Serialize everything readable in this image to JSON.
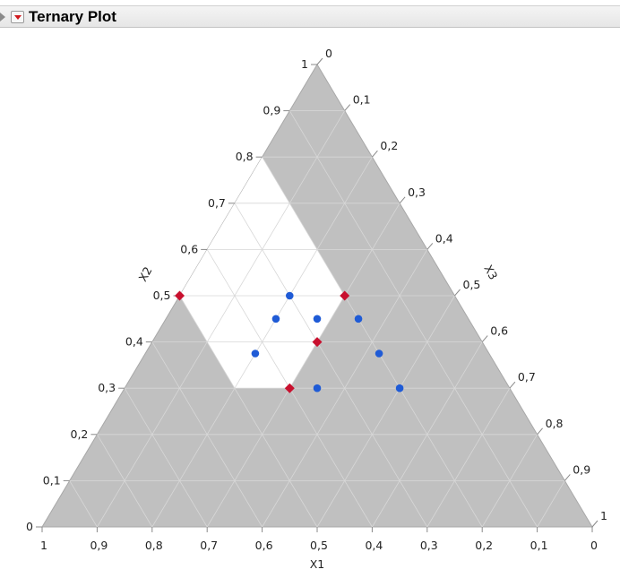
{
  "report": {
    "title": "Ternary Plot"
  },
  "chart_data": {
    "type": "ternary",
    "axes": [
      {
        "name": "X1",
        "ticks": [
          "1",
          "0,9",
          "0,8",
          "0,7",
          "0,6",
          "0,5",
          "0,4",
          "0,3",
          "0,2",
          "0,1",
          "0"
        ]
      },
      {
        "name": "X2",
        "ticks": [
          "0",
          "0,1",
          "0,2",
          "0,3",
          "0,4",
          "0,5",
          "0,6",
          "0,7",
          "0,8",
          "0,9",
          "1"
        ]
      },
      {
        "name": "X3",
        "ticks": [
          "0",
          "0,1",
          "0,2",
          "0,3",
          "0,4",
          "0,5",
          "0,6",
          "0,7",
          "0,8",
          "0,9",
          "1"
        ]
      }
    ],
    "grid": true,
    "background_color": "#c0c0c0",
    "feasible_region_color": "#ffffff",
    "feasible_region": [
      {
        "x1": 0.2,
        "x2": 0.5,
        "x3": 0.3
      },
      {
        "x1": 0.4,
        "x2": 0.3,
        "x3": 0.3
      },
      {
        "x1": 0.5,
        "x2": 0.3,
        "x3": 0.2
      },
      {
        "x1": 0.5,
        "x2": 0.5,
        "x3": 0.0
      },
      {
        "x1": 0.2,
        "x2": 0.8,
        "x3": 0.0
      },
      {
        "x1": 0.2,
        "x2": 0.5,
        "x3": 0.3
      }
    ],
    "series": [
      {
        "marker": "diamond",
        "color": "#c8102e",
        "points": [
          {
            "x1": 0.5,
            "x2": 0.5,
            "x3": 0.0
          },
          {
            "x1": 0.4,
            "x2": 0.3,
            "x3": 0.3
          },
          {
            "x1": 0.2,
            "x2": 0.5,
            "x3": 0.3
          },
          {
            "x1": 0.3,
            "x2": 0.4,
            "x3": 0.3
          }
        ]
      },
      {
        "marker": "circle",
        "color": "#1f5bd6",
        "points": [
          {
            "x1": 0.3,
            "x2": 0.5,
            "x3": 0.2
          },
          {
            "x1": 0.35,
            "x2": 0.45,
            "x3": 0.2
          },
          {
            "x1": 0.275,
            "x2": 0.45,
            "x3": 0.275
          },
          {
            "x1": 0.2,
            "x2": 0.45,
            "x3": 0.35
          },
          {
            "x1": 0.425,
            "x2": 0.375,
            "x3": 0.2
          },
          {
            "x1": 0.35,
            "x2": 0.3,
            "x3": 0.35
          },
          {
            "x1": 0.2,
            "x2": 0.375,
            "x3": 0.425
          },
          {
            "x1": 0.2,
            "x2": 0.3,
            "x3": 0.5
          }
        ]
      }
    ]
  }
}
